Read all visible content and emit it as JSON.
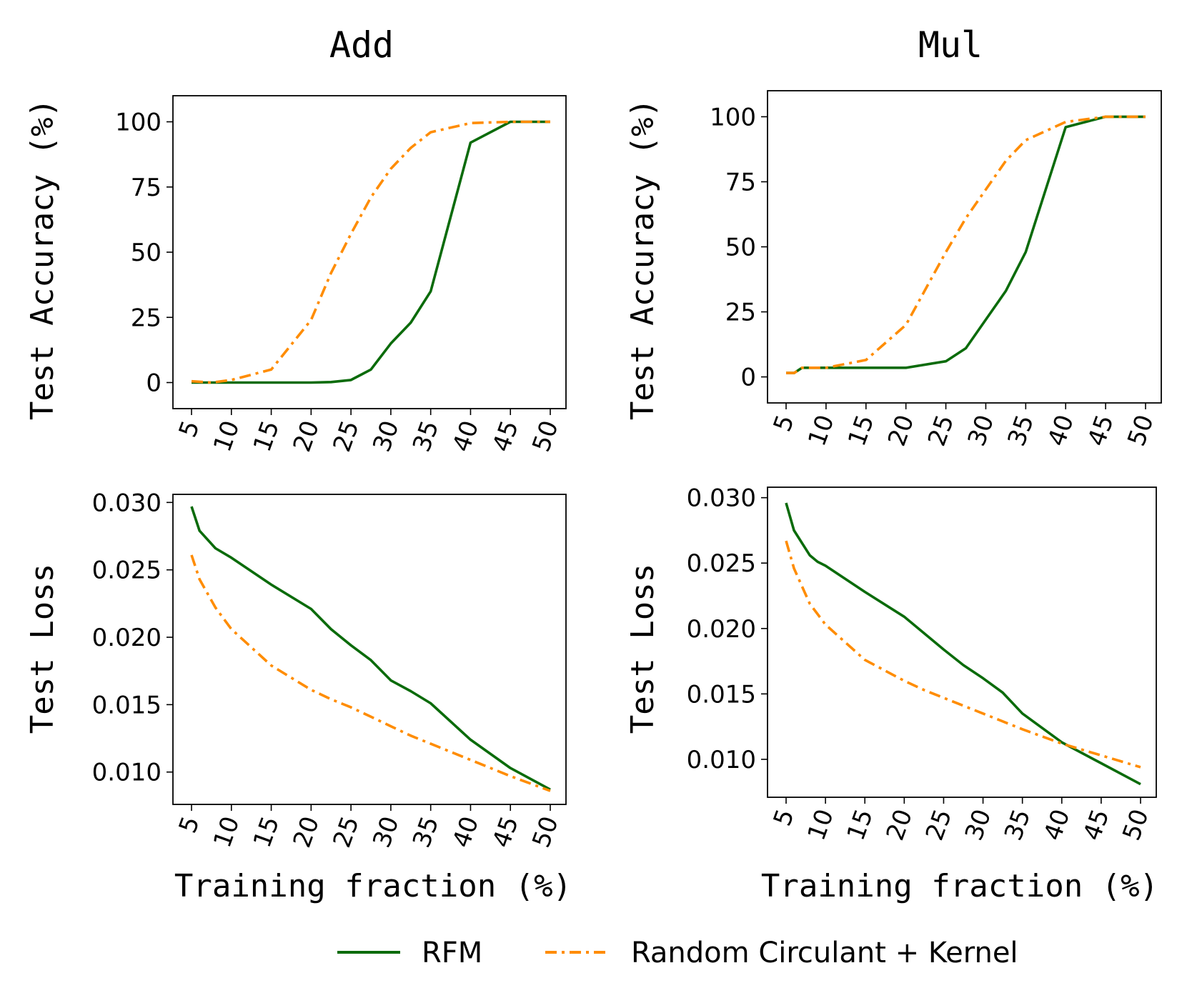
{
  "colors": {
    "rfm": "#0b6b0b",
    "rck": "#ff8c00"
  },
  "legend": {
    "rfm": "RFM",
    "rck": "Random Circulant + Kernel"
  },
  "xlabel_bottom": "Training fraction (%)",
  "chart_data": [
    {
      "type": "line",
      "panel": "add-accuracy",
      "title": "Add",
      "xlabel": "",
      "ylabel": "Test Accuracy (%)",
      "xlim": [
        5,
        50
      ],
      "ylim": [
        -10,
        110
      ],
      "xticks": [
        5,
        10,
        15,
        20,
        25,
        30,
        35,
        40,
        45,
        50
      ],
      "yticks": [
        0,
        25,
        50,
        75,
        100
      ],
      "ytick_labels": [
        "0",
        "25",
        "50",
        "75",
        "100"
      ],
      "series": [
        {
          "name": "RFM",
          "x": [
            5,
            7.5,
            10,
            15,
            20,
            22.5,
            25,
            27.5,
            30,
            32.5,
            35,
            40,
            45,
            50
          ],
          "values": [
            0,
            0,
            0,
            0,
            0,
            0.2,
            1,
            5,
            15,
            23,
            35,
            92,
            100,
            100
          ]
        },
        {
          "name": "Random Circulant + Kernel",
          "x": [
            5,
            7.5,
            10,
            15,
            20,
            22.5,
            25,
            27.5,
            30,
            32.5,
            35,
            40,
            45,
            50
          ],
          "values": [
            0.5,
            0,
            1,
            5,
            24,
            42,
            57,
            71,
            82,
            90,
            96,
            99.5,
            100,
            100
          ]
        }
      ]
    },
    {
      "type": "line",
      "panel": "mul-accuracy",
      "title": "Mul",
      "xlabel": "",
      "ylabel": "Test Accuracy (%)",
      "xlim": [
        5,
        50
      ],
      "ylim": [
        -10,
        110
      ],
      "xticks": [
        5,
        10,
        15,
        20,
        25,
        30,
        35,
        40,
        45,
        50
      ],
      "yticks": [
        0,
        25,
        50,
        75,
        100
      ],
      "ytick_labels": [
        "0",
        "25",
        "50",
        "75",
        "100"
      ],
      "series": [
        {
          "name": "RFM",
          "x": [
            5,
            6,
            7,
            10,
            15,
            20,
            25,
            27.5,
            30,
            32.5,
            35,
            40,
            45,
            50
          ],
          "values": [
            1.5,
            1.5,
            3.5,
            3.5,
            3.5,
            3.5,
            6,
            11,
            22,
            33,
            48,
            96,
            100,
            100
          ]
        },
        {
          "name": "Random Circulant + Kernel",
          "x": [
            5,
            6,
            7,
            10,
            15,
            20,
            25,
            27.5,
            30,
            32.5,
            35,
            40,
            45,
            50
          ],
          "values": [
            1.5,
            1.5,
            3.5,
            3.5,
            6.5,
            20,
            48,
            61,
            72,
            83,
            91,
            98,
            100,
            100
          ]
        }
      ]
    },
    {
      "type": "line",
      "panel": "add-loss",
      "title": "",
      "xlabel": "Training fraction (%)",
      "ylabel": "Test Loss",
      "xlim": [
        5,
        50
      ],
      "ylim": [
        0.0076,
        0.0306
      ],
      "xticks": [
        5,
        10,
        15,
        20,
        25,
        30,
        35,
        40,
        45,
        50
      ],
      "yticks": [
        0.01,
        0.015,
        0.02,
        0.025,
        0.03
      ],
      "ytick_labels": [
        "0.010",
        "0.015",
        "0.020",
        "0.025",
        "0.030"
      ],
      "series": [
        {
          "name": "RFM",
          "x": [
            5,
            6,
            8,
            10,
            15,
            20,
            22.5,
            25,
            27.5,
            30,
            32.5,
            35,
            40,
            45,
            50
          ],
          "values": [
            0.0297,
            0.0279,
            0.0266,
            0.0259,
            0.0239,
            0.0221,
            0.0206,
            0.0194,
            0.0183,
            0.0168,
            0.016,
            0.0151,
            0.0124,
            0.0103,
            0.0087
          ]
        },
        {
          "name": "Random Circulant + Kernel",
          "x": [
            5,
            6,
            8,
            10,
            15,
            20,
            22.5,
            25,
            27.5,
            30,
            32.5,
            35,
            40,
            45,
            50
          ],
          "values": [
            0.0261,
            0.0243,
            0.0222,
            0.0206,
            0.0179,
            0.0161,
            0.0154,
            0.0148,
            0.0141,
            0.0134,
            0.0127,
            0.0121,
            0.0109,
            0.0097,
            0.0086
          ]
        }
      ]
    },
    {
      "type": "line",
      "panel": "mul-loss",
      "title": "",
      "xlabel": "Training fraction (%)",
      "ylabel": "Test Loss",
      "xlim": [
        5,
        50
      ],
      "ylim": [
        0.0071,
        0.0308
      ],
      "xticks": [
        5,
        10,
        15,
        20,
        25,
        30,
        35,
        40,
        45,
        50
      ],
      "yticks": [
        0.01,
        0.015,
        0.02,
        0.025,
        0.03
      ],
      "ytick_labels": [
        "0.010",
        "0.015",
        "0.020",
        "0.025",
        "0.030"
      ],
      "series": [
        {
          "name": "RFM",
          "x": [
            5,
            6,
            8,
            9,
            10,
            15,
            20,
            25,
            27.5,
            30,
            32.5,
            35,
            40,
            45,
            50
          ],
          "values": [
            0.0296,
            0.0275,
            0.0256,
            0.0251,
            0.0248,
            0.0228,
            0.0209,
            0.0184,
            0.0172,
            0.0162,
            0.0151,
            0.0135,
            0.0113,
            0.0097,
            0.0081
          ]
        },
        {
          "name": "Random Circulant + Kernel",
          "x": [
            5,
            6,
            8,
            10,
            15,
            20,
            22.5,
            25,
            30,
            35,
            40,
            45,
            50
          ],
          "values": [
            0.0267,
            0.0246,
            0.0219,
            0.0203,
            0.0176,
            0.016,
            0.0153,
            0.0147,
            0.0135,
            0.0123,
            0.0112,
            0.0103,
            0.0094
          ]
        }
      ]
    }
  ]
}
